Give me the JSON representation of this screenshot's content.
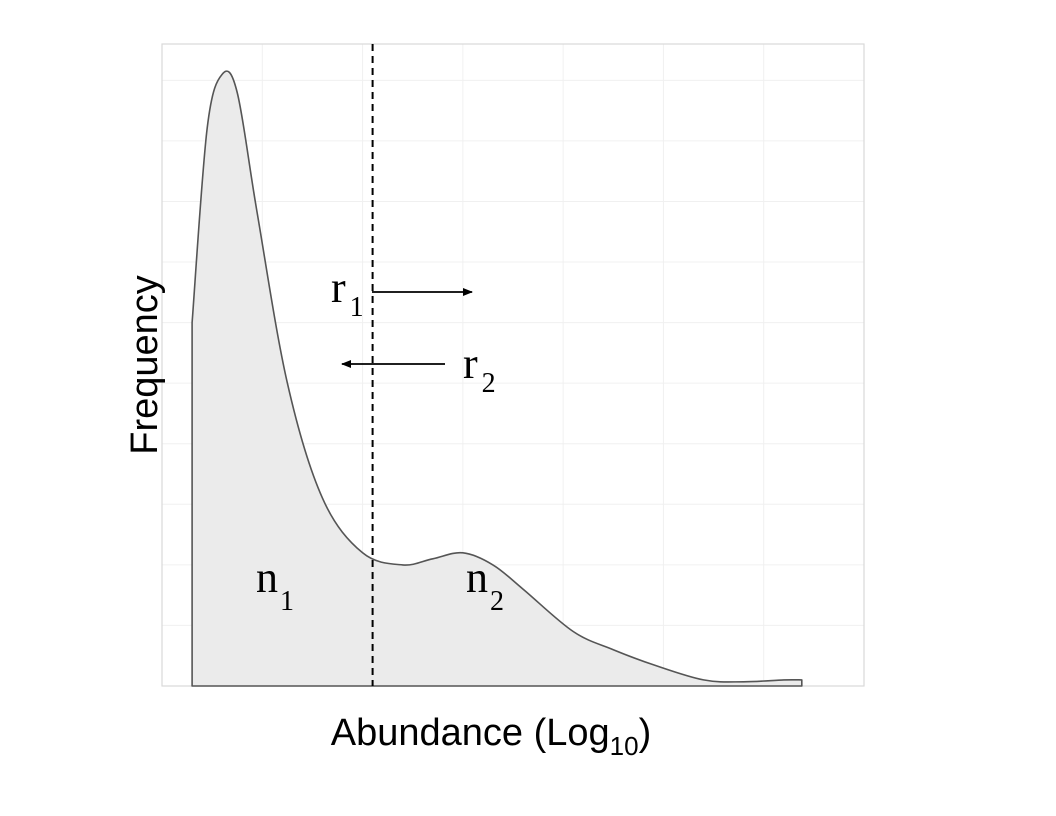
{
  "chart_data": {
    "type": "area",
    "title": "",
    "xlabel": {
      "base": "Abundance (Log",
      "subscript": "10",
      "suffix": ")"
    },
    "ylabel": "Frequency",
    "grid": true,
    "legend": "none",
    "tick_labels_shown": false,
    "xlim": [
      0,
      7
    ],
    "ylim": [
      0,
      10.6
    ],
    "series": [
      {
        "points": [
          [
            0.3,
            6.0
          ],
          [
            0.45,
            9.2
          ],
          [
            0.6,
            10.1
          ],
          [
            0.75,
            9.8
          ],
          [
            0.95,
            7.8
          ],
          [
            1.25,
            5.0
          ],
          [
            1.6,
            3.1
          ],
          [
            2.0,
            2.2
          ],
          [
            2.4,
            2.0
          ],
          [
            2.7,
            2.1
          ],
          [
            3.0,
            2.2
          ],
          [
            3.3,
            2.0
          ],
          [
            3.6,
            1.6
          ],
          [
            4.1,
            0.9
          ],
          [
            4.5,
            0.6
          ],
          [
            4.9,
            0.35
          ],
          [
            5.4,
            0.1
          ],
          [
            5.8,
            0.07
          ],
          [
            6.2,
            0.1
          ],
          [
            6.38,
            0.1
          ]
        ],
        "fill": "#ebebeb",
        "stroke": "#555555"
      }
    ],
    "threshold": {
      "x": 2.1,
      "style": "dashed"
    },
    "annotations": [
      {
        "main": "r",
        "sub": "1",
        "arrow": "right"
      },
      {
        "main": "r",
        "sub": "2",
        "arrow": "left"
      },
      {
        "main": "n",
        "sub": "1"
      },
      {
        "main": "n",
        "sub": "2"
      }
    ]
  }
}
